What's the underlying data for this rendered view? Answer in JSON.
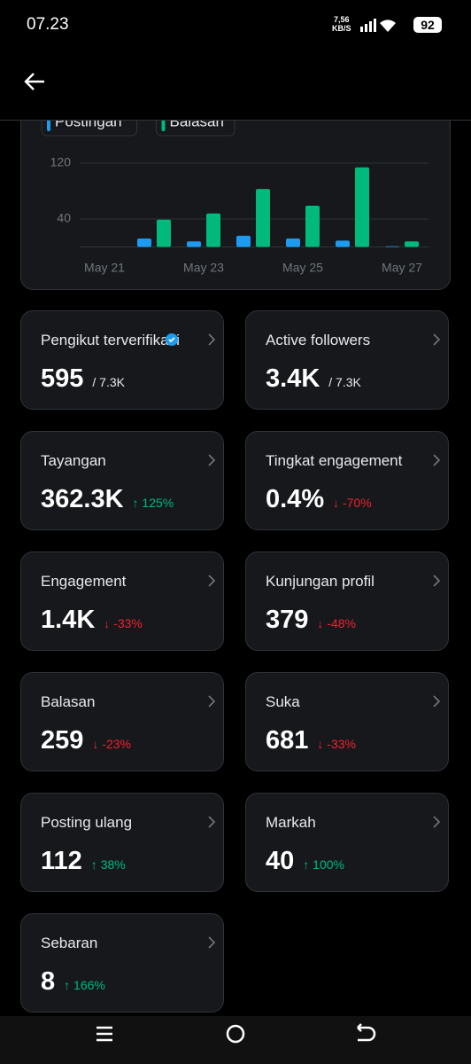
{
  "status_bar": {
    "time": "07.23",
    "network_speed": "7,56",
    "network_unit": "KB/S",
    "battery": "92"
  },
  "chart_data": {
    "type": "bar",
    "categories": [
      "May 21",
      null,
      "May 23",
      null,
      "May 25",
      null,
      "May 27"
    ],
    "series": [
      {
        "name": "Postingan",
        "color": "#1d9bf0",
        "values": [
          0,
          12,
          8,
          16,
          12,
          9,
          1
        ]
      },
      {
        "name": "Balasan",
        "color": "#00ba7c",
        "values": [
          0,
          39,
          48,
          83,
          59,
          114,
          8
        ]
      }
    ],
    "ylim": [
      0,
      120
    ],
    "yticks": [
      40,
      120
    ],
    "grid": true
  },
  "metrics": [
    {
      "title": "Pengikut terverifikasi",
      "value": "595",
      "total": "/ 7.3K",
      "verified": true
    },
    {
      "title": "Active followers",
      "value": "3.4K",
      "total": "/ 7.3K"
    },
    {
      "title": "Tayangan",
      "value": "362.3K",
      "change": "125%",
      "direction": "up"
    },
    {
      "title": "Tingkat engagement",
      "value": "0.4%",
      "change": "-70%",
      "direction": "down"
    },
    {
      "title": "Engagement",
      "value": "1.4K",
      "change": "-33%",
      "direction": "down"
    },
    {
      "title": "Kunjungan profil",
      "value": "379",
      "change": "-48%",
      "direction": "down"
    },
    {
      "title": "Balasan",
      "value": "259",
      "change": "-23%",
      "direction": "down"
    },
    {
      "title": "Suka",
      "value": "681",
      "change": "-33%",
      "direction": "down"
    },
    {
      "title": "Posting ulang",
      "value": "112",
      "change": "38%",
      "direction": "up"
    },
    {
      "title": "Markah",
      "value": "40",
      "change": "100%",
      "direction": "up"
    },
    {
      "title": "Sebaran",
      "value": "8",
      "change": "166%",
      "direction": "up"
    }
  ]
}
